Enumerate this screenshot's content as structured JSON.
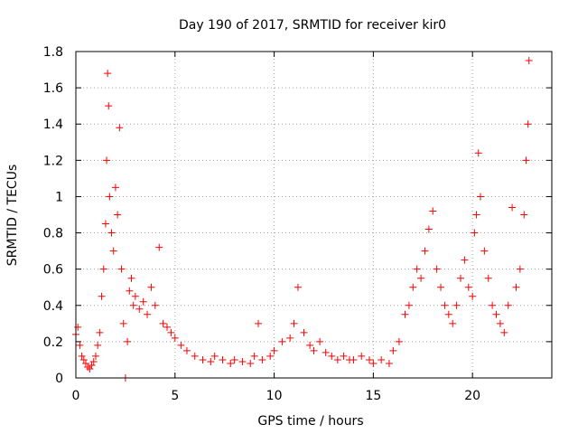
{
  "chart_data": {
    "type": "scatter",
    "title": "Day 190 of 2017, SRMTID for receiver kir0",
    "xlabel": "GPS time / hours",
    "ylabel": "SRMTID / TECUs",
    "xlim": [
      0,
      24
    ],
    "ylim": [
      0,
      1.8
    ],
    "xticks": [
      0,
      5,
      10,
      15,
      20
    ],
    "xtick_labels": [
      "0",
      "5",
      "10",
      "15",
      "20"
    ],
    "yticks": [
      0,
      0.2,
      0.4,
      0.6,
      0.8,
      1.0,
      1.2,
      1.4,
      1.6,
      1.8
    ],
    "ytick_labels": [
      "0",
      "0.2",
      "0.4",
      "0.6",
      "0.8",
      "1",
      "1.2",
      "1.4",
      "1.6",
      "1.8"
    ],
    "grid": true,
    "marker": "+",
    "series": [
      {
        "name": "SRMTID",
        "color": "#ff0000",
        "x": [
          0.0,
          0.1,
          0.2,
          0.3,
          0.4,
          0.5,
          0.6,
          0.7,
          0.8,
          0.9,
          1.0,
          1.1,
          1.2,
          1.3,
          1.4,
          1.5,
          1.55,
          1.6,
          1.65,
          1.7,
          1.8,
          1.9,
          2.0,
          2.1,
          2.2,
          2.3,
          2.4,
          2.5,
          2.6,
          2.7,
          2.8,
          2.9,
          3.0,
          3.2,
          3.4,
          3.6,
          3.8,
          4.0,
          4.2,
          4.4,
          4.6,
          4.8,
          5.0,
          5.3,
          5.6,
          6.0,
          6.4,
          6.8,
          7.0,
          7.4,
          7.8,
          8.0,
          8.4,
          8.8,
          9.0,
          9.2,
          9.4,
          9.8,
          10.0,
          10.4,
          10.8,
          11.0,
          11.2,
          11.5,
          11.8,
          12.0,
          12.3,
          12.6,
          12.9,
          13.2,
          13.5,
          13.8,
          14.0,
          14.4,
          14.8,
          15.0,
          15.4,
          15.8,
          16.0,
          16.3,
          16.6,
          16.8,
          17.0,
          17.2,
          17.4,
          17.6,
          17.8,
          18.0,
          18.2,
          18.4,
          18.6,
          18.8,
          19.0,
          19.2,
          19.4,
          19.6,
          19.8,
          20.0,
          20.1,
          20.2,
          20.3,
          20.4,
          20.6,
          20.8,
          21.0,
          21.2,
          21.4,
          21.6,
          21.8,
          22.0,
          22.2,
          22.4,
          22.6,
          22.7,
          22.8,
          22.85
        ],
        "y": [
          0.24,
          0.28,
          0.18,
          0.12,
          0.1,
          0.08,
          0.06,
          0.05,
          0.07,
          0.09,
          0.12,
          0.18,
          0.25,
          0.45,
          0.6,
          0.85,
          1.2,
          1.68,
          1.5,
          1.0,
          0.8,
          0.7,
          1.05,
          0.9,
          1.38,
          0.6,
          0.3,
          0.0,
          0.2,
          0.48,
          0.55,
          0.4,
          0.45,
          0.38,
          0.42,
          0.35,
          0.5,
          0.4,
          0.72,
          0.3,
          0.28,
          0.25,
          0.22,
          0.18,
          0.15,
          0.12,
          0.1,
          0.09,
          0.12,
          0.1,
          0.08,
          0.1,
          0.09,
          0.08,
          0.12,
          0.3,
          0.1,
          0.12,
          0.15,
          0.2,
          0.22,
          0.3,
          0.5,
          0.25,
          0.18,
          0.15,
          0.2,
          0.14,
          0.12,
          0.1,
          0.12,
          0.1,
          0.1,
          0.12,
          0.1,
          0.08,
          0.1,
          0.08,
          0.15,
          0.2,
          0.35,
          0.4,
          0.5,
          0.6,
          0.55,
          0.7,
          0.82,
          0.92,
          0.6,
          0.5,
          0.4,
          0.35,
          0.3,
          0.4,
          0.55,
          0.65,
          0.5,
          0.45,
          0.8,
          0.9,
          1.24,
          1.0,
          0.7,
          0.55,
          0.4,
          0.35,
          0.3,
          0.25,
          0.4,
          0.94,
          0.5,
          0.6,
          0.9,
          1.2,
          1.4,
          1.75
        ]
      }
    ]
  }
}
